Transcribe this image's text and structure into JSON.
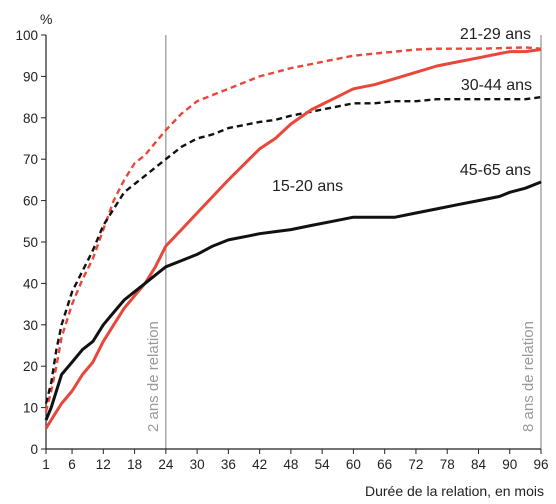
{
  "chart_data": {
    "type": "line",
    "ylabel": "%",
    "xlabel": "Durée de la relation, en mois",
    "xlim": [
      1,
      96
    ],
    "ylim": [
      0,
      100
    ],
    "xticks": [
      1,
      6,
      12,
      18,
      24,
      30,
      36,
      42,
      48,
      54,
      60,
      66,
      72,
      78,
      84,
      90,
      96
    ],
    "yticks": [
      0,
      10,
      20,
      30,
      40,
      50,
      60,
      70,
      80,
      90,
      100
    ],
    "grid": false,
    "reference_lines": [
      {
        "x": 24,
        "label": "2 ans de relation",
        "color": "#9a9a9a"
      },
      {
        "x": 96,
        "label": "8 ans de relation",
        "color": "#9a9a9a"
      }
    ],
    "series": [
      {
        "name": "21-29 ans",
        "color": "#e8473a",
        "dash": true,
        "x": [
          1,
          2,
          3,
          4,
          6,
          8,
          10,
          12,
          14,
          16,
          18,
          20,
          22,
          24,
          27,
          30,
          33,
          36,
          40,
          42,
          45,
          48,
          52,
          56,
          60,
          64,
          68,
          72,
          76,
          80,
          84,
          88,
          90,
          93,
          96
        ],
        "y": [
          9,
          14,
          20,
          27,
          35,
          41,
          46,
          53,
          60,
          65,
          69,
          71,
          74,
          77,
          81,
          84,
          85.5,
          87,
          89,
          90,
          91,
          92,
          93,
          94,
          95,
          95.5,
          96,
          96.5,
          96.7,
          96.7,
          96.7,
          96.8,
          96.9,
          97,
          96.7
        ]
      },
      {
        "name": "30-44 ans",
        "color": "#111111",
        "dash": true,
        "x": [
          1,
          2,
          3,
          4,
          6,
          8,
          10,
          12,
          14,
          16,
          18,
          20,
          22,
          24,
          27,
          30,
          33,
          36,
          40,
          42,
          45,
          48,
          52,
          56,
          60,
          64,
          68,
          72,
          76,
          80,
          84,
          88,
          90,
          93,
          96
        ],
        "y": [
          11,
          16,
          24,
          30,
          38,
          43,
          48,
          54,
          58,
          62,
          64,
          66,
          68,
          70,
          73,
          75,
          76,
          77.5,
          78.5,
          79,
          79.5,
          80.5,
          81.5,
          82.5,
          83.5,
          83.5,
          84,
          84,
          84.5,
          84.5,
          84.5,
          84.5,
          84.5,
          84.5,
          85
        ]
      },
      {
        "name": "15-20 ans",
        "color": "#e8473a",
        "dash": false,
        "x": [
          1,
          2,
          3,
          4,
          6,
          8,
          10,
          12,
          14,
          16,
          18,
          20,
          22,
          24,
          27,
          30,
          33,
          36,
          40,
          42,
          45,
          48,
          52,
          56,
          60,
          64,
          68,
          72,
          76,
          80,
          84,
          88,
          90,
          93,
          96
        ],
        "y": [
          5,
          7,
          9,
          11,
          14,
          18,
          21,
          26,
          30,
          34,
          37,
          40,
          44,
          49,
          53,
          57,
          61,
          65,
          70,
          72.5,
          75,
          78.5,
          82,
          84.5,
          87,
          88,
          89.5,
          91,
          92.5,
          93.5,
          94.5,
          95.5,
          96,
          96,
          96.5
        ]
      },
      {
        "name": "45-65 ans",
        "color": "#111111",
        "dash": false,
        "x": [
          1,
          2,
          3,
          4,
          6,
          8,
          10,
          12,
          14,
          16,
          18,
          20,
          22,
          24,
          27,
          30,
          33,
          36,
          40,
          42,
          45,
          48,
          52,
          56,
          60,
          64,
          68,
          72,
          76,
          80,
          84,
          88,
          90,
          93,
          96
        ],
        "y": [
          7,
          10,
          14,
          18,
          21,
          24,
          26,
          30,
          33,
          36,
          38,
          40,
          42,
          44,
          45.5,
          47,
          49,
          50.5,
          51.5,
          52,
          52.5,
          53,
          54,
          55,
          56,
          56,
          56,
          57,
          58,
          59,
          60,
          61,
          62,
          63,
          64.5
        ]
      }
    ]
  }
}
